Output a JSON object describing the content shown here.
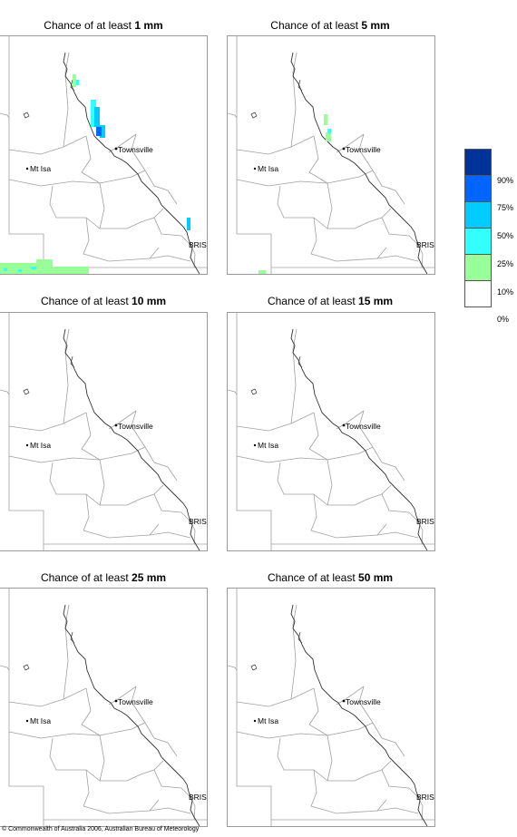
{
  "panels": [
    {
      "title_prefix": "Chance of at least ",
      "amount": "1 mm"
    },
    {
      "title_prefix": "Chance of at least ",
      "amount": "5 mm"
    },
    {
      "title_prefix": "Chance of at least ",
      "amount": "10 mm"
    },
    {
      "title_prefix": "Chance of at least ",
      "amount": "15 mm"
    },
    {
      "title_prefix": "Chance of at least ",
      "amount": "25 mm"
    },
    {
      "title_prefix": "Chance of at least ",
      "amount": "50 mm"
    }
  ],
  "places": {
    "townsville": "Townsville",
    "mt_isa": "Mt Isa",
    "bris": "BRIS"
  },
  "legend": [
    {
      "label": "90%",
      "color": "#003399"
    },
    {
      "label": "75%",
      "color": "#0066ff"
    },
    {
      "label": "50%",
      "color": "#00ccff"
    },
    {
      "label": "25%",
      "color": "#33ffff"
    },
    {
      "label": "10%",
      "color": "#99ff99"
    },
    {
      "label": "0%",
      "color": "#ffffff"
    }
  ],
  "copyright": "© Commonwealth of Australia 2006, Australian Bureau of Meteorology"
}
